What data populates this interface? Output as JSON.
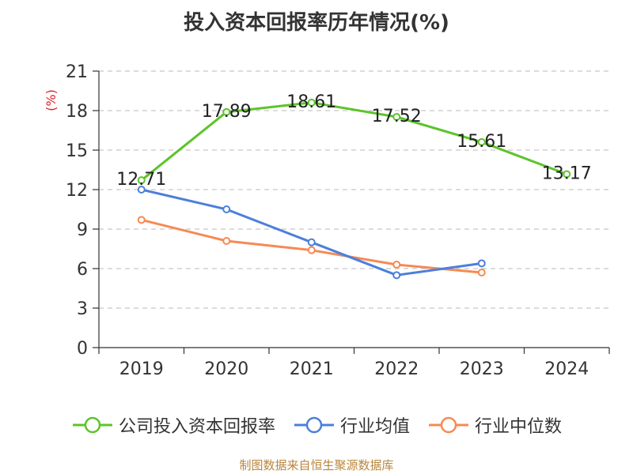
{
  "colors": {
    "company": "#5cc42a",
    "industry_avg": "#4c7fdc",
    "industry_median": "#f58a55",
    "axis": "#333333",
    "grid": "#c8c8c8",
    "unit": "#e02020",
    "source": "#b8863b"
  },
  "chart_data": {
    "type": "line",
    "title": "投入资本回报率历年情况(%)",
    "ylabel": "(%)",
    "x": [
      "2019",
      "2020",
      "2021",
      "2022",
      "2023",
      "2024"
    ],
    "ylim": [
      0,
      21
    ],
    "yticks": [
      0,
      3,
      6,
      9,
      12,
      15,
      18,
      21
    ],
    "grid": true,
    "legend_position": "bottom",
    "series": [
      {
        "name": "公司投入资本回报率",
        "color": "#5cc42a",
        "values": [
          12.71,
          17.89,
          18.61,
          17.52,
          15.61,
          13.17
        ],
        "labels": [
          "12.71",
          "17.89",
          "18.61",
          "17.52",
          "15.61",
          "13.17"
        ]
      },
      {
        "name": "行业均值",
        "color": "#4c7fdc",
        "values": [
          12.0,
          10.5,
          8.0,
          5.5,
          6.4,
          null
        ]
      },
      {
        "name": "行业中位数",
        "color": "#f58a55",
        "values": [
          9.7,
          8.1,
          7.4,
          6.3,
          5.7,
          null
        ]
      }
    ]
  },
  "source_note": "制图数据来自恒生聚源数据库"
}
